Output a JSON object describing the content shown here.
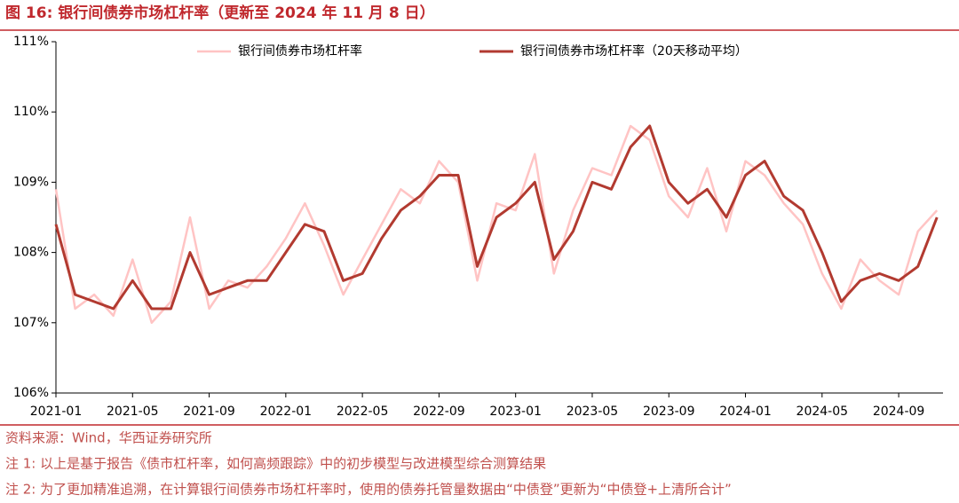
{
  "chart_data": {
    "type": "line",
    "title": "图 16:  银行间债券市场杠杆率（更新至 2024 年 11 月 8 日）",
    "categories": [
      "2021-01",
      null,
      null,
      null,
      "2021-05",
      null,
      null,
      null,
      "2021-09",
      null,
      null,
      null,
      "2022-01",
      null,
      null,
      null,
      "2022-05",
      null,
      null,
      null,
      "2022-09",
      null,
      null,
      null,
      "2023-01",
      null,
      null,
      null,
      "2023-05",
      null,
      null,
      null,
      "2023-09",
      null,
      null,
      null,
      "2024-01",
      null,
      null,
      null,
      "2024-05",
      null,
      null,
      null,
      "2024-09",
      null,
      null
    ],
    "series": [
      {
        "name": "银行间债券市场杠杆率",
        "color": "#ffc4c4",
        "width": 2.5,
        "values": [
          108.9,
          107.2,
          107.4,
          107.1,
          107.9,
          107.0,
          107.3,
          108.5,
          107.2,
          107.6,
          107.5,
          107.8,
          108.2,
          108.7,
          108.1,
          107.4,
          107.9,
          108.4,
          108.9,
          108.7,
          109.3,
          109.0,
          107.6,
          108.7,
          108.6,
          109.4,
          107.7,
          108.6,
          109.2,
          109.1,
          109.8,
          109.6,
          108.8,
          108.5,
          109.2,
          108.3,
          109.3,
          109.1,
          108.7,
          108.4,
          107.7,
          107.2,
          107.9,
          107.6,
          107.4,
          108.3,
          108.6
        ]
      },
      {
        "name": "银行间债券市场杠杆率（20天移动平均）",
        "color": "#b23a30",
        "width": 3,
        "values": [
          108.4,
          107.4,
          107.3,
          107.2,
          107.6,
          107.2,
          107.2,
          108.0,
          107.4,
          107.5,
          107.6,
          107.6,
          108.0,
          108.4,
          108.3,
          107.6,
          107.7,
          108.2,
          108.6,
          108.8,
          109.1,
          109.1,
          107.8,
          108.5,
          108.7,
          109.0,
          107.9,
          108.3,
          109.0,
          108.9,
          109.5,
          109.8,
          109.0,
          108.7,
          108.9,
          108.5,
          109.1,
          109.3,
          108.8,
          108.6,
          108.0,
          107.3,
          107.6,
          107.7,
          107.6,
          107.8,
          108.5
        ]
      }
    ],
    "ylim": [
      106,
      111
    ],
    "yticks": [
      {
        "value": 106,
        "label": "106%"
      },
      {
        "value": 107,
        "label": "107%"
      },
      {
        "value": 108,
        "label": "108%"
      },
      {
        "value": 109,
        "label": "109%"
      },
      {
        "value": 110,
        "label": "110%"
      },
      {
        "value": 111,
        "label": "111%"
      }
    ],
    "legend": "top"
  },
  "notes": [
    "资料来源：Wind，华西证券研究所",
    "注 1:  以上是基于报告《债市杠杆率，如何高频跟踪》中的初步模型与改进模型综合测算结果",
    "注 2:  为了更加精准追溯，在计算银行间债券市场杠杆率时，使用的债券托管量数据由“中债登”更新为“中债登+上清所合计”"
  ]
}
